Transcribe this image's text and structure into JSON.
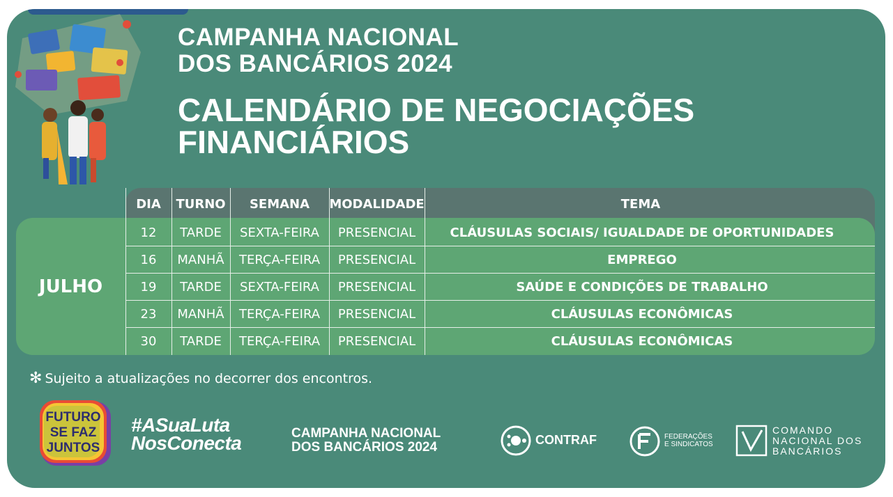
{
  "header": {
    "line1": "CAMPANHA NACIONAL",
    "line2": "DOS BANCÁRIOS 2024",
    "title1": "CALENDÁRIO DE NEGOCIAÇÕES",
    "title2": "FINANCIÁRIOS"
  },
  "table": {
    "columns": [
      "DIA",
      "TURNO",
      "SEMANA",
      "MODALIDADE",
      "TEMA"
    ],
    "month": "JULHO",
    "rows": [
      {
        "dia": "12",
        "turno": "TARDE",
        "semana": "SEXTA-FEIRA",
        "modalidade": "PRESENCIAL",
        "tema": "CLÁUSULAS SOCIAIS/ IGUALDADE DE OPORTUNIDADES"
      },
      {
        "dia": "16",
        "turno": "MANHÃ",
        "semana": "TERÇA-FEIRA",
        "modalidade": "PRESENCIAL",
        "tema": "EMPREGO"
      },
      {
        "dia": "19",
        "turno": "TARDE",
        "semana": "SEXTA-FEIRA",
        "modalidade": "PRESENCIAL",
        "tema": "SAÚDE E CONDIÇÕES DE TRABALHO"
      },
      {
        "dia": "23",
        "turno": "MANHÃ",
        "semana": "TERÇA-FEIRA",
        "modalidade": "PRESENCIAL",
        "tema": "CLÁUSULAS ECONÔMICAS"
      },
      {
        "dia": "30",
        "turno": "TARDE",
        "semana": "TERÇA-FEIRA",
        "modalidade": "PRESENCIAL",
        "tema": "CLÁUSULAS ECONÔMICAS"
      }
    ]
  },
  "note": {
    "asterisk": "✻",
    "text": "Sujeito a atualizações no decorrer dos encontros."
  },
  "footer": {
    "futuro": [
      "FUTURO",
      "SE FAZ",
      "JUNTOS"
    ],
    "hashtag1": "#ASuaLuta",
    "hashtag2": "NosConecta",
    "campanha1": "CAMPANHA NACIONAL",
    "campanha2": "DOS BANCÁRIOS 2024",
    "contraf": "CONTRAF",
    "fed1": "FEDERAÇÕES",
    "fed2": "E SINDICATOS",
    "comando1": "COMANDO",
    "comando2": "NACIONAL DOS",
    "comando3": "BANCÁRIOS"
  },
  "colors": {
    "background": "#4a8a79",
    "header_row": "#5a7570",
    "body_rows": "#5ea674",
    "text": "#ffffff"
  },
  "icons": [
    "people-illustration",
    "futuro-se-faz-juntos-logo",
    "contraf-logo",
    "federacoes-logo",
    "comando-logo",
    "asterisk-icon"
  ]
}
